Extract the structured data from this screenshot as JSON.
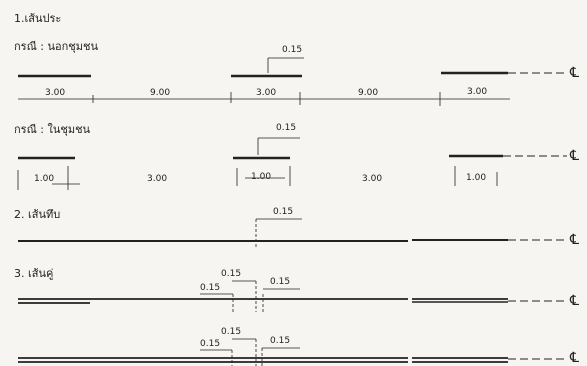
{
  "sections": {
    "s1": {
      "title": "1.เส้นประ",
      "case_outside": {
        "label": "กรณี : นอกชุมชน",
        "top_dim": "0.15",
        "dims": [
          "3.00",
          "9.00",
          "3.00",
          "9.00",
          "3.00"
        ]
      },
      "case_inside": {
        "label": "กรณี : ในชุมชน",
        "top_dim": "0.15",
        "dims": [
          "1.00",
          "3.00",
          "1.00",
          "3.00",
          "1.00"
        ]
      }
    },
    "s2": {
      "title": "2. เส้นทึบ",
      "top_dim": "0.15"
    },
    "s3": {
      "title": "3. เส้นคู่",
      "row1": {
        "dim_top": "0.15",
        "dim_left": "0.15",
        "dim_right": "0.15"
      },
      "row2": {
        "dim_top": "0.15",
        "dim_left": "0.15",
        "dim_right": "0.15"
      }
    }
  },
  "centerline_symbol": "℄"
}
